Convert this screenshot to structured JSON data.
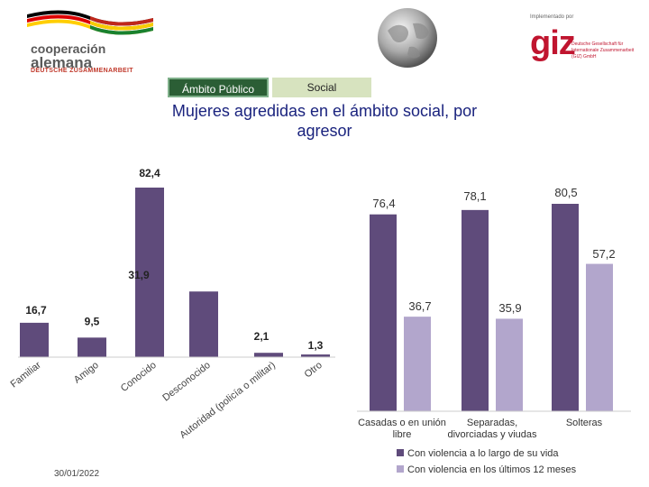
{
  "logos": {
    "left_line1": "cooperación",
    "left_line2": "alemana",
    "left_line3": "DEUTSCHE ZUSAMMENARBEIT",
    "giz_implemented": "Implementado por",
    "giz_name": "giz",
    "giz_subtitle": "Deutsche Gesellschaft für Internationale Zusammenarbeit (GIZ) GmbH",
    "flag_colors": [
      "#000000",
      "#dd0000",
      "#ffce00"
    ],
    "bolivia_colors": [
      "#d52b1e",
      "#f9e300",
      "#007934"
    ]
  },
  "tabs": [
    {
      "label": "Ámbito Público",
      "active": true
    },
    {
      "label": "Social",
      "active": false
    }
  ],
  "title": "Mujeres agredidas en el ámbito social, por agresor",
  "footer": {
    "date": "30/01/2022"
  },
  "chart_data": [
    {
      "type": "bar",
      "categories": [
        "Familiar",
        "Amigo",
        "Conocido",
        "Desconocido",
        "Autoridad (policía o militar)",
        "Otro"
      ],
      "values": [
        16.7,
        9.5,
        82.4,
        31.9,
        2.1,
        1.3
      ],
      "value_labels": [
        "16,7",
        "9,5",
        "82,4",
        "31,9",
        "2,1",
        "1,3"
      ],
      "color": "#5f4b7b",
      "ylim": [
        0,
        85
      ]
    },
    {
      "type": "bar",
      "categories": [
        "Casadas o en unión libre",
        "Separadas, divorciadas y viudas",
        "Solteras"
      ],
      "series": [
        {
          "name": "Con violencia a lo largo de su vida",
          "values": [
            76.4,
            78.1,
            80.5
          ],
          "labels": [
            "76,4",
            "78,1",
            "80,5"
          ],
          "color": "#5f4b7b"
        },
        {
          "name": "Con violencia en los últimos 12 meses",
          "values": [
            36.7,
            35.9,
            57.2
          ],
          "labels": [
            "36,7",
            "35,9",
            "57,2"
          ],
          "color": "#b2a6cc"
        }
      ],
      "ylim": [
        0,
        85
      ],
      "legend": "bottom"
    }
  ]
}
